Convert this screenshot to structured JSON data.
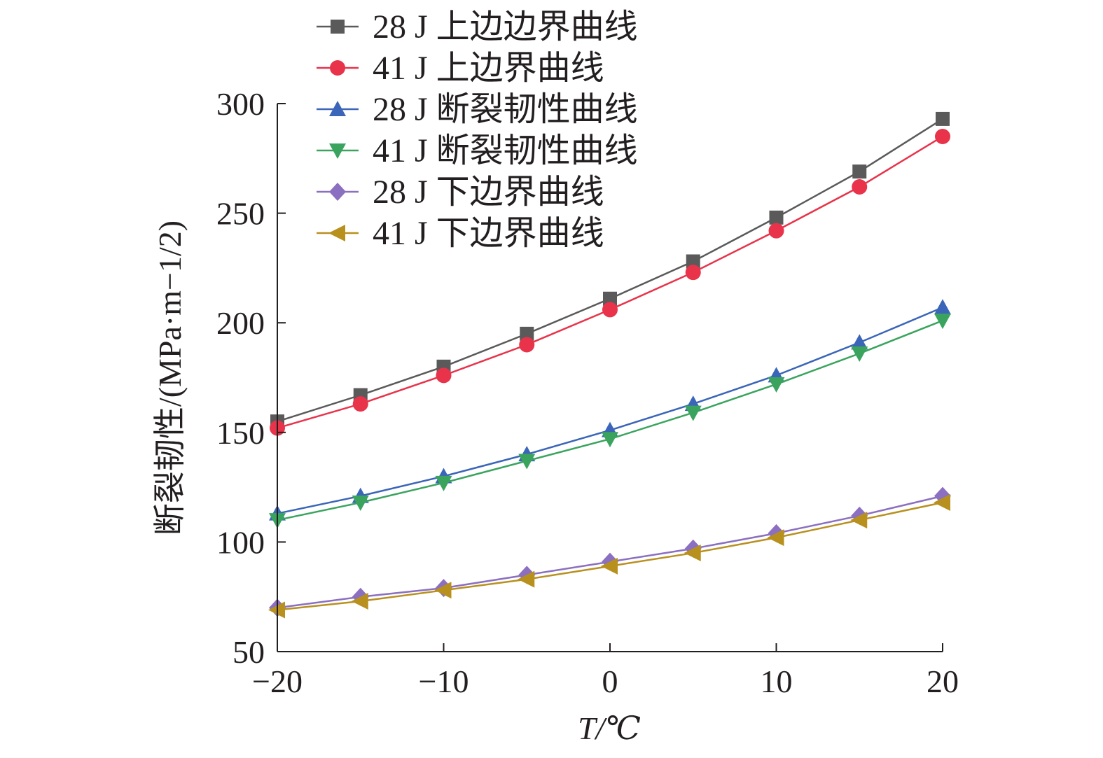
{
  "chart_data": {
    "type": "line",
    "xlabel": "T/℃",
    "ylabel": "断裂韧性/(MPa·m−1/2)",
    "xlim": [
      -20,
      20
    ],
    "ylim": [
      50,
      300
    ],
    "xticks": [
      -20,
      -10,
      0,
      10,
      20
    ],
    "yticks": [
      50,
      100,
      150,
      200,
      250,
      300
    ],
    "grid": false,
    "legend_position": "top",
    "x": [
      -20,
      -15,
      -10,
      -5,
      0,
      5,
      10,
      15,
      20
    ],
    "series": [
      {
        "name": "28 J 上边边界曲线",
        "marker": "square",
        "color": "#5a5a5a",
        "values": [
          155,
          167,
          180,
          195,
          211,
          228,
          248,
          269,
          293
        ]
      },
      {
        "name": "41 J 上边界曲线",
        "marker": "circle",
        "color": "#e8334a",
        "values": [
          152,
          163,
          176,
          190,
          206,
          223,
          242,
          262,
          285
        ]
      },
      {
        "name": "28 J 断裂韧性曲线",
        "marker": "triangle-up",
        "color": "#3a65b8",
        "values": [
          113,
          121,
          130,
          140,
          151,
          163,
          176,
          191,
          207
        ]
      },
      {
        "name": "41 J 断裂韧性曲线",
        "marker": "triangle-down",
        "color": "#3aa45e",
        "values": [
          110,
          118,
          127,
          137,
          147,
          159,
          172,
          186,
          201
        ]
      },
      {
        "name": "28 J 下边界曲线",
        "marker": "diamond",
        "color": "#8b6fc0",
        "values": [
          70,
          75,
          79,
          85,
          91,
          97,
          104,
          112,
          121
        ]
      },
      {
        "name": "41 J 下边界曲线",
        "marker": "triangle-left",
        "color": "#b8901e",
        "values": [
          69,
          73,
          78,
          83,
          89,
          95,
          102,
          110,
          118
        ]
      }
    ]
  }
}
